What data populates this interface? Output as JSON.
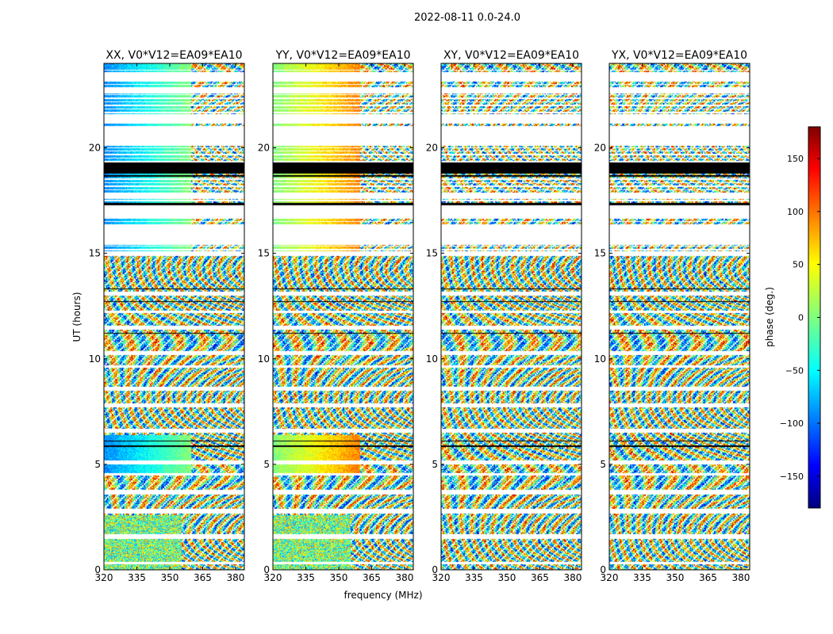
{
  "chart_data": {
    "type": "heatmap",
    "title": "2022-08-11 0.0-24.0",
    "xlabel": "frequency (MHz)",
    "ylabel": "UT (hours)",
    "xlim": [
      320,
      384
    ],
    "ylim": [
      0,
      24
    ],
    "x_ticks": [
      320,
      335,
      350,
      365,
      380
    ],
    "y_ticks": [
      0,
      5,
      10,
      15,
      20
    ],
    "panels": [
      {
        "title": "XX, V0*V12=EA09*EA10",
        "kind": "parallel"
      },
      {
        "title": "YY, V0*V12=EA09*EA10",
        "kind": "parallel"
      },
      {
        "title": "XY, V0*V12=EA09*EA10",
        "kind": "cross"
      },
      {
        "title": "YX, V0*V12=EA09*EA10",
        "kind": "cross"
      }
    ],
    "colorbar": {
      "label": "phase (deg.)",
      "range": [
        -180,
        180
      ],
      "ticks": [
        150,
        100,
        50,
        0,
        -50,
        -100,
        -150
      ],
      "colormap": "jet"
    }
  }
}
